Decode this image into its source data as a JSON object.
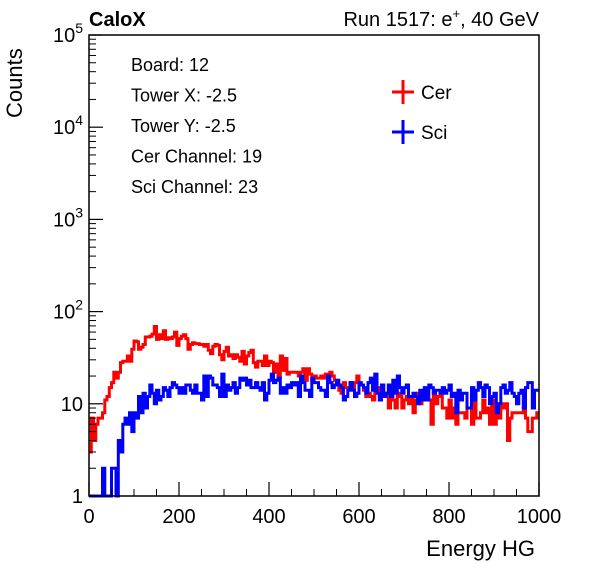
{
  "chart_data": {
    "type": "line",
    "header_left": "CaloX",
    "header_right_pre": "Run 1517: e",
    "header_right_sup": "+",
    "header_right_post": ", 40 GeV",
    "xlabel": "Energy HG",
    "ylabel": "Counts",
    "xlim": [
      0,
      1000
    ],
    "ylim": [
      1,
      100000
    ],
    "yscale": "log",
    "grid": false,
    "x_ticks": [
      "0",
      "200",
      "400",
      "600",
      "800",
      "1000"
    ],
    "y_ticks": [
      {
        "base": "1",
        "exp": ""
      },
      {
        "base": "10",
        "exp": ""
      },
      {
        "base": "10",
        "exp": "2"
      },
      {
        "base": "10",
        "exp": "3"
      },
      {
        "base": "10",
        "exp": "4"
      },
      {
        "base": "10",
        "exp": "5"
      }
    ],
    "info_lines": [
      "Board: 12",
      "Tower X: -2.5",
      "Tower Y: -2.5",
      "Cer Channel: 19",
      "Sci Channel: 23"
    ],
    "legend_position": "top-right",
    "bin_width": 5,
    "series": [
      {
        "name": "Cer",
        "color": "#ff0000",
        "points": [
          [
            0,
            6
          ],
          [
            10,
            5
          ],
          [
            20,
            8
          ],
          [
            30,
            7
          ],
          [
            40,
            14
          ],
          [
            50,
            20
          ],
          [
            60,
            24
          ],
          [
            70,
            28
          ],
          [
            80,
            34
          ],
          [
            90,
            37
          ],
          [
            100,
            40
          ],
          [
            110,
            42
          ],
          [
            120,
            46
          ],
          [
            130,
            52
          ],
          [
            140,
            58
          ],
          [
            150,
            60
          ],
          [
            160,
            56
          ],
          [
            170,
            52
          ],
          [
            180,
            54
          ],
          [
            190,
            57
          ],
          [
            200,
            50
          ],
          [
            210,
            48
          ],
          [
            220,
            47
          ],
          [
            230,
            48
          ],
          [
            240,
            50
          ],
          [
            250,
            46
          ],
          [
            260,
            43
          ],
          [
            270,
            40
          ],
          [
            280,
            38
          ],
          [
            290,
            40
          ],
          [
            300,
            36
          ],
          [
            320,
            35
          ],
          [
            340,
            33
          ],
          [
            360,
            32
          ],
          [
            380,
            31
          ],
          [
            400,
            28
          ],
          [
            420,
            26
          ],
          [
            440,
            25
          ],
          [
            460,
            23
          ],
          [
            480,
            22
          ],
          [
            500,
            20
          ],
          [
            520,
            19
          ],
          [
            540,
            18
          ],
          [
            560,
            16
          ],
          [
            580,
            15
          ],
          [
            600,
            14
          ],
          [
            620,
            13
          ],
          [
            640,
            13
          ],
          [
            660,
            12
          ],
          [
            680,
            12
          ],
          [
            700,
            12
          ],
          [
            720,
            11
          ],
          [
            740,
            11
          ],
          [
            760,
            10
          ],
          [
            780,
            10
          ],
          [
            800,
            10
          ],
          [
            820,
            9
          ],
          [
            840,
            9
          ],
          [
            860,
            9
          ],
          [
            880,
            8
          ],
          [
            900,
            8
          ],
          [
            920,
            8
          ],
          [
            940,
            7
          ],
          [
            960,
            7
          ],
          [
            980,
            7
          ],
          [
            1000,
            7
          ]
        ]
      },
      {
        "name": "Sci",
        "color": "#0000ff",
        "points": [
          [
            0,
            1
          ],
          [
            10,
            1
          ],
          [
            20,
            1
          ],
          [
            30,
            1
          ],
          [
            40,
            1
          ],
          [
            50,
            1.5
          ],
          [
            60,
            2
          ],
          [
            70,
            3
          ],
          [
            80,
            5
          ],
          [
            90,
            7
          ],
          [
            100,
            9
          ],
          [
            110,
            11
          ],
          [
            120,
            12
          ],
          [
            140,
            13
          ],
          [
            160,
            14
          ],
          [
            180,
            14
          ],
          [
            200,
            15
          ],
          [
            220,
            15
          ],
          [
            240,
            16
          ],
          [
            260,
            16
          ],
          [
            280,
            16
          ],
          [
            300,
            16
          ],
          [
            320,
            16
          ],
          [
            340,
            16
          ],
          [
            360,
            16
          ],
          [
            380,
            16
          ],
          [
            400,
            16
          ],
          [
            420,
            16
          ],
          [
            440,
            16
          ],
          [
            460,
            16
          ],
          [
            480,
            16
          ],
          [
            500,
            16
          ],
          [
            520,
            16
          ],
          [
            540,
            15
          ],
          [
            560,
            15
          ],
          [
            580,
            15
          ],
          [
            600,
            15
          ],
          [
            620,
            15
          ],
          [
            640,
            15
          ],
          [
            660,
            15
          ],
          [
            680,
            14
          ],
          [
            700,
            14
          ],
          [
            720,
            14
          ],
          [
            740,
            14
          ],
          [
            760,
            14
          ],
          [
            780,
            14
          ],
          [
            800,
            13
          ],
          [
            820,
            13
          ],
          [
            840,
            13
          ],
          [
            860,
            13
          ],
          [
            880,
            13
          ],
          [
            900,
            13
          ],
          [
            920,
            13
          ],
          [
            940,
            13
          ],
          [
            960,
            13
          ],
          [
            980,
            13
          ],
          [
            1000,
            13
          ]
        ]
      }
    ]
  }
}
